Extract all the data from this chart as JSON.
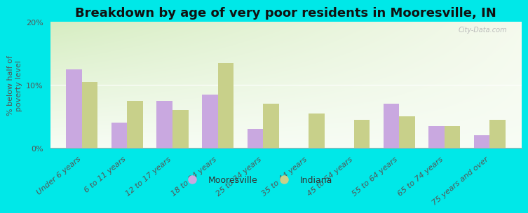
{
  "title": "Breakdown by age of very poor residents in Mooresville, IN",
  "ylabel": "% below half of\npoverty level",
  "categories": [
    "Under 6 years",
    "6 to 11 years",
    "12 to 17 years",
    "18 to 24 years",
    "25 to 34 years",
    "35 to 44 years",
    "45 to 54 years",
    "55 to 64 years",
    "65 to 74 years",
    "75 years and over"
  ],
  "mooresville": [
    12.5,
    4.0,
    7.5,
    8.5,
    3.0,
    0.0,
    0.0,
    7.0,
    3.5,
    2.0
  ],
  "indiana": [
    10.5,
    7.5,
    6.0,
    13.5,
    7.0,
    5.5,
    4.5,
    5.0,
    3.5,
    4.5
  ],
  "mooresville_color": "#c9a8e0",
  "indiana_color": "#c8d08a",
  "background_outer": "#00e8e8",
  "background_plot_top_left": "#d8ecc8",
  "background_plot_top_right": "#f0f4e8",
  "background_plot_bottom": "#f8faf4",
  "ylim": [
    0,
    20
  ],
  "yticks": [
    0,
    10,
    20
  ],
  "ytick_labels": [
    "0%",
    "10%",
    "20%"
  ],
  "bar_width": 0.35,
  "title_fontsize": 13,
  "label_fontsize": 8,
  "watermark": "City-Data.com"
}
